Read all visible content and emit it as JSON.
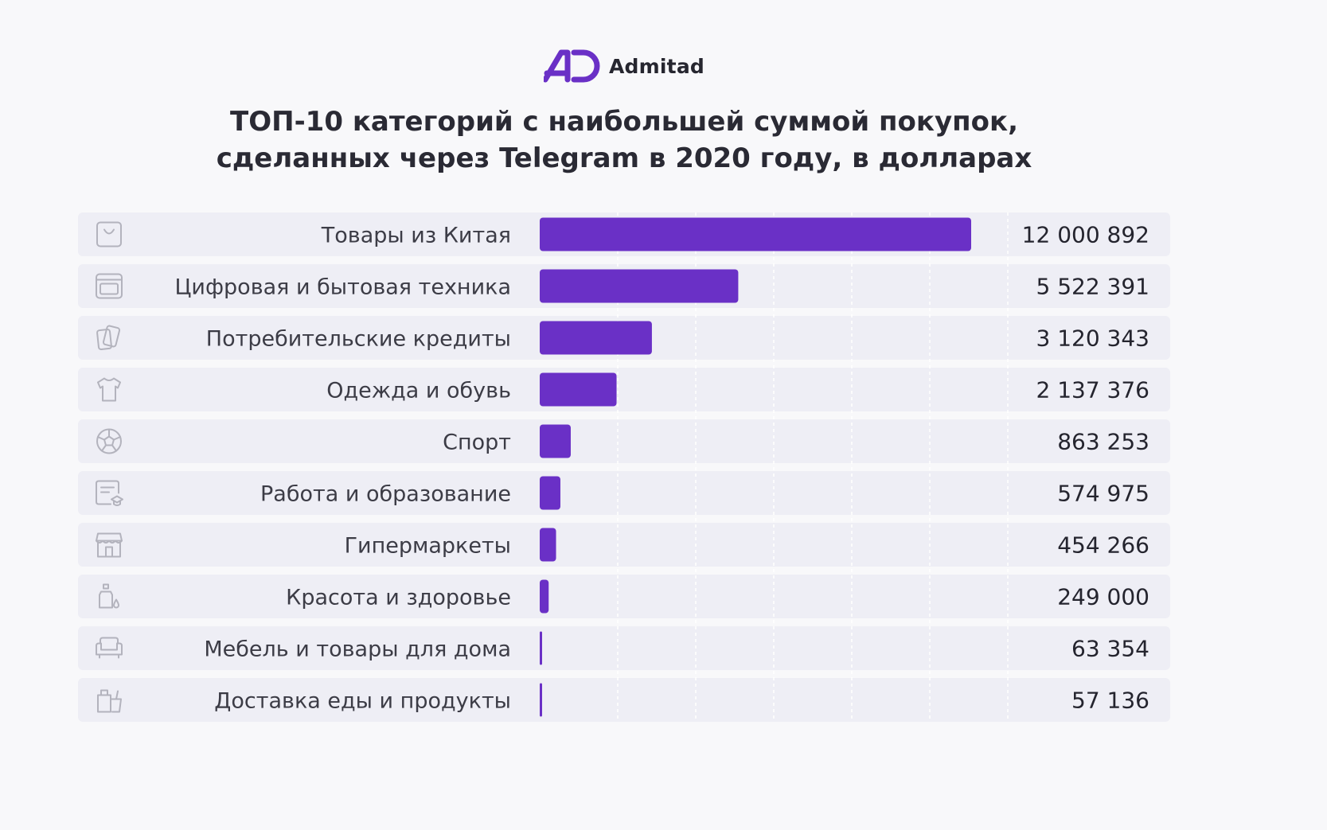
{
  "brand": {
    "name": "Admitad",
    "accent": "#6a30c6"
  },
  "title": {
    "line1": "ТОП-10 категорий с наибольшей суммой покупок,",
    "line2": "сделанных через Telegram в 2020 году, в долларах"
  },
  "colors": {
    "bar": "#6a30c6",
    "row_bg": "#eeeef5",
    "icon": "#b3b3bd",
    "grid": "#ffffff"
  },
  "chart_data": {
    "type": "bar",
    "orientation": "horizontal",
    "title": "ТОП-10 категорий с наибольшей суммой покупок, сделанных через Telegram в 2020 году, в долларах",
    "categories": [
      "Товары из Китая",
      "Цифровая и бытовая техника",
      "Потребительские кредиты",
      "Одежда и обувь",
      "Спорт",
      "Работа и образование",
      "Гипермаркеты",
      "Красота и здоровье",
      "Мебель и товары для дома",
      "Доставка еды и продукты"
    ],
    "values": [
      12000892,
      5522391,
      3120343,
      2137376,
      863253,
      574975,
      454266,
      249000,
      63354,
      57136
    ],
    "value_labels": [
      "12 000 892",
      "5 522 391",
      "3 120 343",
      "2 137 376",
      "863 253",
      "574 975",
      "454 266",
      "249 000",
      "63 354",
      "57 136"
    ],
    "icons": [
      "shopping-bag-icon",
      "appliance-icon",
      "credit-cards-icon",
      "t-shirt-icon",
      "soccer-ball-icon",
      "education-certificate-icon",
      "store-icon",
      "cosmetics-bottle-icon",
      "sofa-icon",
      "food-bag-icon"
    ],
    "xlim": [
      0,
      13000000
    ],
    "grid": true,
    "xlabel": "",
    "ylabel": ""
  }
}
